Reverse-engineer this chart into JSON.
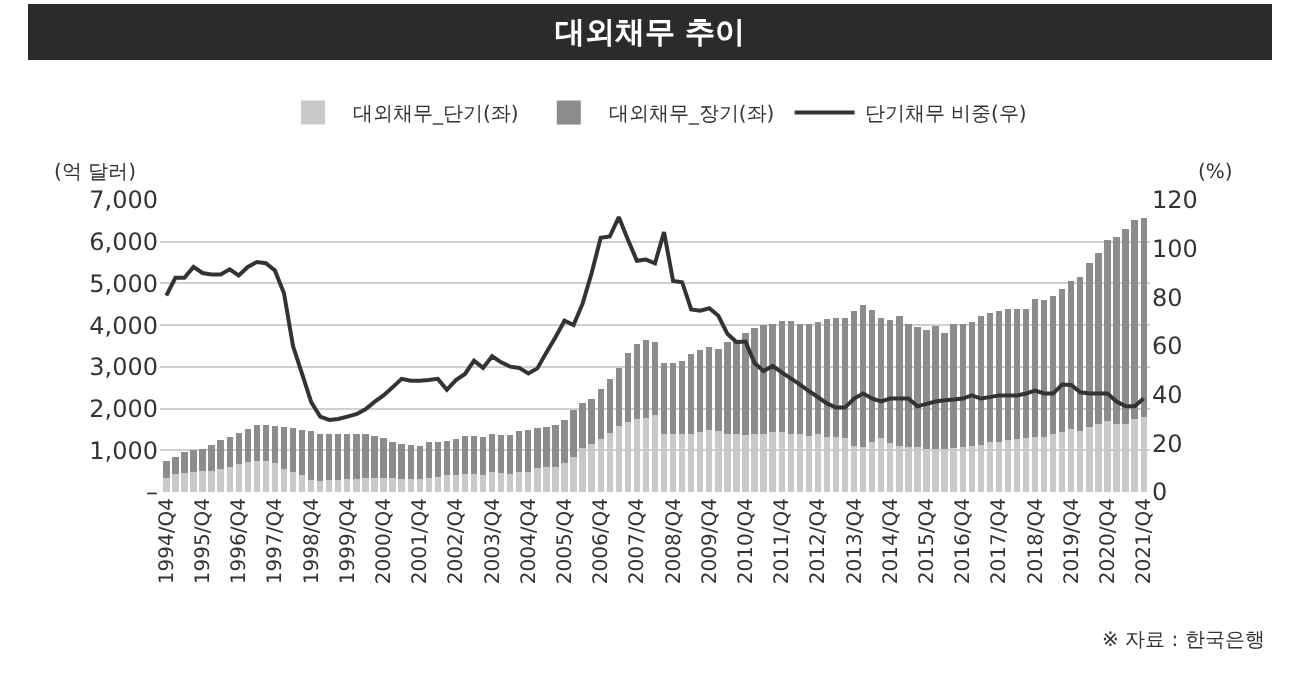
{
  "chart_data": {
    "type": "bar",
    "title": "대외채무 추이",
    "ylabel": "(억 달러)",
    "y2label": "(%)",
    "annotations": [
      "※ 자료 : 한국은행"
    ],
    "stacked": true,
    "grid": "y",
    "legend": "top",
    "categories": [
      "1994/Q4",
      null,
      null,
      null,
      "1995/Q4",
      null,
      null,
      null,
      "1996/Q4",
      null,
      null,
      null,
      "1997/Q4",
      null,
      null,
      null,
      "1998/Q4",
      null,
      null,
      null,
      "1999/Q4",
      null,
      null,
      null,
      "2000/Q4",
      null,
      null,
      null,
      "2001/Q4",
      null,
      null,
      null,
      "2002/Q4",
      null,
      null,
      null,
      "2003/Q4",
      null,
      null,
      null,
      "2004/Q4",
      null,
      null,
      null,
      "2005/Q4",
      null,
      null,
      null,
      "2006/Q4",
      null,
      null,
      null,
      "2007/Q4",
      null,
      null,
      null,
      "2008/Q4",
      null,
      null,
      null,
      "2009/Q4",
      null,
      null,
      null,
      "2010/Q4",
      null,
      null,
      null,
      "2011/Q4",
      null,
      null,
      null,
      "2012/Q4",
      null,
      null,
      null,
      "2013/Q4",
      null,
      null,
      null,
      "2014/Q4",
      null,
      null,
      null,
      "2015/Q4",
      null,
      null,
      null,
      "2016/Q4",
      null,
      null,
      null,
      "2017/Q4",
      null,
      null,
      null,
      "2018/Q4",
      null,
      null,
      null,
      "2019/Q4",
      null,
      null,
      null,
      "2020/Q4",
      null,
      null,
      null,
      "2021/Q4"
    ],
    "ylim": [
      0,
      7000
    ],
    "yticks": [
      {
        "value": 0,
        "label": "–"
      },
      {
        "value": 1000,
        "label": "1,000"
      },
      {
        "value": 2000,
        "label": "2,000"
      },
      {
        "value": 3000,
        "label": "3,000"
      },
      {
        "value": 4000,
        "label": "4,000"
      },
      {
        "value": 5000,
        "label": "5,000"
      },
      {
        "value": 6000,
        "label": "6,000"
      },
      {
        "value": 7000,
        "label": "7,000"
      }
    ],
    "y2lim": [
      0,
      120
    ],
    "y2ticks": [
      0,
      20,
      40,
      60,
      80,
      100,
      120
    ],
    "series": [
      {
        "name": "대외채무_단기(좌)",
        "color": "#c9c9c9",
        "values": [
          340,
          440,
          450,
          470,
          500,
          500,
          560,
          600,
          660,
          720,
          750,
          750,
          700,
          560,
          480,
          410,
          290,
          260,
          280,
          280,
          310,
          320,
          340,
          340,
          340,
          340,
          320,
          320,
          310,
          340,
          370,
          400,
          400,
          420,
          420,
          410,
          470,
          450,
          440,
          470,
          480,
          570,
          600,
          600,
          700,
          850,
          1050,
          1140,
          1260,
          1420,
          1580,
          1680,
          1760,
          1770,
          1840,
          1400,
          1400,
          1390,
          1390,
          1430,
          1490,
          1460,
          1400,
          1390,
          1360,
          1380,
          1400,
          1430,
          1430,
          1400,
          1400,
          1350,
          1390,
          1330,
          1320,
          1290,
          1110,
          1080,
          1210,
          1290,
          1170,
          1100,
          1080,
          1080,
          1040,
          1040,
          1020,
          1050,
          1080,
          1110,
          1130,
          1190,
          1210,
          1240,
          1260,
          1290,
          1320,
          1320,
          1380,
          1450,
          1510,
          1460,
          1550,
          1620,
          1710,
          1620,
          1620,
          1760,
          1790
        ]
      },
      {
        "name": "대외채무_장기(좌)",
        "color": "#8c8c8c",
        "values": [
          410,
          410,
          500,
          540,
          540,
          630,
          680,
          720,
          760,
          800,
          850,
          860,
          880,
          990,
          1060,
          1080,
          1170,
          1140,
          1110,
          1100,
          1080,
          1080,
          1040,
          1010,
          950,
          850,
          840,
          810,
          790,
          850,
          840,
          830,
          860,
          930,
          930,
          920,
          930,
          910,
          920,
          990,
          1010,
          970,
          970,
          1010,
          1030,
          1110,
          1090,
          1100,
          1200,
          1300,
          1390,
          1660,
          1800,
          1880,
          1750,
          1690,
          1690,
          1740,
          1930,
          1970,
          1990,
          1980,
          2190,
          2240,
          2460,
          2560,
          2600,
          2600,
          2680,
          2700,
          2630,
          2680,
          2680,
          2810,
          2860,
          2890,
          3220,
          3400,
          3150,
          2880,
          2960,
          3120,
          2950,
          2870,
          2840,
          2930,
          2780,
          2980,
          2950,
          2960,
          3090,
          3100,
          3120,
          3150,
          3130,
          3100,
          3310,
          3280,
          3310,
          3410,
          3540,
          3690,
          3940,
          4120,
          4340,
          4490,
          4690,
          4770,
          4780
        ]
      },
      {
        "name": "단기채무 비중(우)",
        "type": "line",
        "axis": "y2",
        "color": "#333333",
        "marker": "none",
        "line_style": "solid",
        "values": [
          80.7,
          88,
          88,
          92.5,
          90,
          89.4,
          89.4,
          91.5,
          89,
          92.5,
          94.5,
          94,
          91,
          81.7,
          60,
          48.5,
          37,
          31,
          29.6,
          30,
          31,
          32,
          34,
          37,
          39.7,
          43,
          46.5,
          45.7,
          45.7,
          46,
          46.5,
          42,
          46,
          48.5,
          54,
          51,
          55.8,
          53.3,
          51.5,
          51,
          48.7,
          50.8,
          57.3,
          63.6,
          70.4,
          68.6,
          77.4,
          90,
          104.5,
          105,
          113,
          103.8,
          95,
          95.5,
          94,
          106.8,
          86.7,
          86.2,
          75,
          74.5,
          75.5,
          72.4,
          65,
          61.6,
          61.8,
          53,
          49.7,
          51.8,
          49.2,
          46.7,
          44.2,
          41.5,
          39,
          36.4,
          34.7,
          34.7,
          38.4,
          40.5,
          38.4,
          37.2,
          38.4,
          38.4,
          38.4,
          35.2,
          36.2,
          37.2,
          37.7,
          38,
          38.4,
          39.7,
          38.4,
          39,
          39.7,
          39.7,
          39.7,
          40.5,
          41.7,
          40.5,
          40.5,
          44.2,
          44,
          41,
          40.5,
          40.5,
          40.5,
          37.2,
          35.2,
          35.2,
          38.4
        ]
      }
    ]
  }
}
